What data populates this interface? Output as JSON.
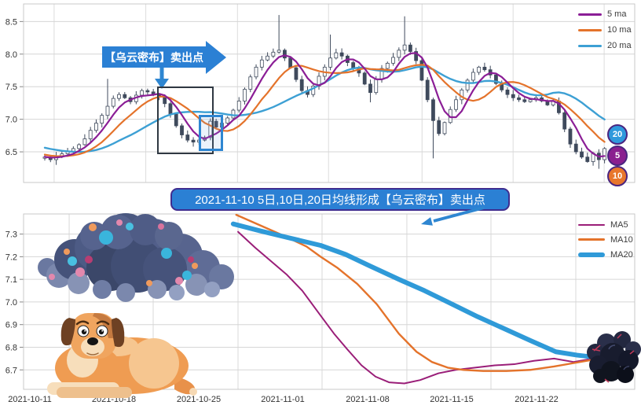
{
  "annotations": {
    "callout": {
      "text": "【乌云密布】卖出点",
      "color": "#2b80d4",
      "text_color": "#ffffff"
    },
    "banner": {
      "text": "2021-11-10 5日,10日,20日均线形成【乌云密布】卖出点",
      "fill": "#2b80d4",
      "border": "#3f2d8f",
      "text_color": "#ffffff"
    },
    "highlight_boxes": [
      {
        "name": "dark-cloud-pattern-region",
        "color": "#2f3842"
      },
      {
        "name": "sell-point-candle",
        "color": "#2e86d1"
      }
    ]
  },
  "illustrations": {
    "cloud": "dark-storm-cloud",
    "dog": "worried-dog",
    "berries": "dark-berry-cluster"
  },
  "chart_data": [
    {
      "type": "candlestick",
      "title": "",
      "grid": true,
      "y_ticks": [
        6.5,
        7.0,
        7.5,
        8.0,
        8.5
      ],
      "ylim": [
        6.03,
        8.77
      ],
      "v_grid_fx": [
        0.05,
        0.2,
        0.35,
        0.499,
        0.652,
        0.801,
        0.95
      ],
      "legend_position": "top-right",
      "legend": [
        {
          "label": "5 ma",
          "color": "#8b1e96"
        },
        {
          "label": "10 ma",
          "color": "#e4732b"
        },
        {
          "label": "20 ma",
          "color": "#3da0d4"
        }
      ],
      "badges": [
        {
          "label": "20",
          "color": "#2f99dc"
        },
        {
          "label": "5",
          "color": "#8a1f8f"
        },
        {
          "label": "10",
          "color": "#e8762c"
        }
      ],
      "candle_colors": {
        "body_up": "#ffffff",
        "body_down": "#3f4a5c",
        "border": "#3f4a5c"
      },
      "ma_windows": [
        5,
        10,
        20
      ],
      "ma_colors": [
        "#8b1e96",
        "#e4732b",
        "#3da0d4"
      ],
      "history_closes": [
        6.78,
        6.76,
        6.74,
        6.72,
        6.7,
        6.68,
        6.66,
        6.64,
        6.62,
        6.6,
        6.57,
        6.54,
        6.51,
        6.49,
        6.47,
        6.45,
        6.44,
        6.43,
        6.42,
        6.41
      ],
      "closes": [
        6.42,
        6.38,
        6.44,
        6.47,
        6.51,
        6.55,
        6.61,
        6.7,
        6.83,
        6.94,
        7.06,
        7.2,
        7.32,
        7.38,
        7.33,
        7.27,
        7.37,
        7.44,
        7.42,
        7.38,
        7.35,
        7.24,
        7.08,
        6.9,
        6.76,
        6.68,
        6.65,
        6.68,
        6.72,
        6.97,
        6.88,
        6.94,
        7.02,
        7.14,
        7.28,
        7.46,
        7.65,
        7.8,
        7.91,
        7.97,
        8.03,
        8.06,
        7.94,
        7.79,
        7.61,
        7.44,
        7.38,
        7.51,
        7.66,
        7.8,
        7.94,
        8.02,
        7.97,
        7.87,
        7.79,
        7.71,
        7.54,
        7.41,
        7.62,
        7.78,
        7.86,
        7.95,
        8.06,
        8.14,
        8.04,
        7.9,
        7.6,
        7.3,
        6.98,
        6.78,
        6.95,
        7.15,
        7.3,
        7.45,
        7.6,
        7.72,
        7.8,
        7.76,
        7.68,
        7.55,
        7.45,
        7.38,
        7.33,
        7.3,
        7.27,
        7.3,
        7.33,
        7.28,
        7.22,
        7.28,
        7.1,
        6.85,
        6.62,
        6.5,
        6.42,
        6.35,
        6.48,
        6.38,
        6.55
      ],
      "wick_spikes": [
        {
          "i": 2,
          "low": 6.3
        },
        {
          "i": 11,
          "high": 7.62
        },
        {
          "i": 41,
          "high": 8.6
        },
        {
          "i": 50,
          "high": 8.3
        },
        {
          "i": 57,
          "low": 7.26
        },
        {
          "i": 63,
          "high": 8.58
        },
        {
          "i": 68,
          "low": 6.4
        },
        {
          "i": 97,
          "low": 6.24
        }
      ]
    },
    {
      "type": "line",
      "title": "",
      "grid": true,
      "y_ticks": [
        6.7,
        6.8,
        6.9,
        7.0,
        7.1,
        7.2,
        7.3
      ],
      "ylim": [
        6.614,
        7.389
      ],
      "x_tick_labels": [
        "2021-10-11",
        "2021-10-18",
        "2021-10-25",
        "2021-11-01",
        "2021-11-08",
        "2021-11-15",
        "2021-11-22"
      ],
      "x_grid_fx": [
        0.0746,
        0.2121,
        0.3509,
        0.4884,
        0.6272,
        0.7648,
        0.9036
      ],
      "legend_position": "top-right",
      "legend": [
        {
          "label": "MA5",
          "color": "#9a1e78",
          "width": 2
        },
        {
          "label": "MA10",
          "color": "#e4732b",
          "width": 3
        },
        {
          "label": "MA20",
          "color": "#2f9ad8",
          "width": 6
        }
      ],
      "series": [
        {
          "name": "MA5",
          "color": "#9a1e78",
          "width": 2,
          "points": [
            [
              0.351,
              7.31
            ],
            [
              0.379,
              7.24
            ],
            [
              0.405,
              7.18
            ],
            [
              0.431,
              7.12
            ],
            [
              0.456,
              7.05
            ],
            [
              0.486,
              6.94
            ],
            [
              0.508,
              6.86
            ],
            [
              0.53,
              6.79
            ],
            [
              0.553,
              6.72
            ],
            [
              0.576,
              6.67
            ],
            [
              0.598,
              6.645
            ],
            [
              0.623,
              6.64
            ],
            [
              0.649,
              6.655
            ],
            [
              0.679,
              6.685
            ],
            [
              0.707,
              6.7
            ],
            [
              0.739,
              6.71
            ],
            [
              0.771,
              6.72
            ],
            [
              0.803,
              6.725
            ],
            [
              0.835,
              6.74
            ],
            [
              0.868,
              6.75
            ],
            [
              0.9,
              6.735
            ],
            [
              0.932,
              6.75
            ],
            [
              0.974,
              6.755
            ]
          ]
        },
        {
          "name": "MA10",
          "color": "#e4732b",
          "width": 2.4,
          "points": [
            [
              0.348,
              7.385
            ],
            [
              0.386,
              7.34
            ],
            [
              0.424,
              7.295
            ],
            [
              0.463,
              7.245
            ],
            [
              0.486,
              7.2
            ],
            [
              0.514,
              7.15
            ],
            [
              0.546,
              7.08
            ],
            [
              0.578,
              6.99
            ],
            [
              0.614,
              6.86
            ],
            [
              0.643,
              6.78
            ],
            [
              0.668,
              6.735
            ],
            [
              0.694,
              6.71
            ],
            [
              0.72,
              6.7
            ],
            [
              0.752,
              6.695
            ],
            [
              0.79,
              6.695
            ],
            [
              0.829,
              6.7
            ],
            [
              0.868,
              6.715
            ],
            [
              0.9,
              6.73
            ],
            [
              0.932,
              6.745
            ],
            [
              0.974,
              6.755
            ]
          ]
        },
        {
          "name": "MA20",
          "color": "#2f9ad8",
          "width": 6,
          "points": [
            [
              0.343,
              7.345
            ],
            [
              0.386,
              7.315
            ],
            [
              0.424,
              7.29
            ],
            [
              0.486,
              7.25
            ],
            [
              0.527,
              7.21
            ],
            [
              0.566,
              7.16
            ],
            [
              0.614,
              7.1
            ],
            [
              0.656,
              7.05
            ],
            [
              0.694,
              7.0
            ],
            [
              0.743,
              6.935
            ],
            [
              0.784,
              6.885
            ],
            [
              0.829,
              6.83
            ],
            [
              0.871,
              6.78
            ],
            [
              0.906,
              6.765
            ],
            [
              0.938,
              6.755
            ],
            [
              0.974,
              6.75
            ]
          ]
        }
      ]
    }
  ]
}
